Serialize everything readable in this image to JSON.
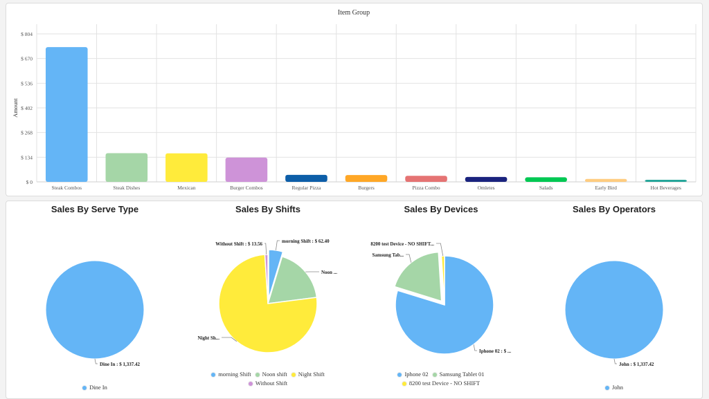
{
  "chart_data": [
    {
      "type": "bar",
      "title": "Item Group",
      "xlabel": "",
      "ylabel": "Amount",
      "ylim": [
        0,
        804
      ],
      "yticks": [
        "$ 0",
        "$ 134",
        "$ 268",
        "$ 402",
        "$ 536",
        "$ 670",
        "$ 804"
      ],
      "grid": true,
      "categories": [
        "Steak Combos",
        "Steak Dishes",
        "Mexican",
        "Burger Combos",
        "Regular Pizza",
        "Burgers",
        "Pizza Combo",
        "Omletes",
        "Salads",
        "Early Bird",
        "Hot Beverages"
      ],
      "values": [
        732,
        156,
        155,
        132,
        38,
        37,
        33,
        27,
        25,
        16,
        9
      ],
      "colors": [
        "#64b5f6",
        "#a5d6a7",
        "#ffeb3b",
        "#ce93d8",
        "#0d5ea8",
        "#ffa726",
        "#e57373",
        "#1a237e",
        "#00c853",
        "#ffcc80",
        "#26a69a"
      ]
    },
    {
      "type": "pie",
      "title": "Sales By Serve Type",
      "labels": [
        "Dine In"
      ],
      "values": [
        1337.42
      ],
      "colors": [
        "#64b5f6"
      ],
      "data_labels": [
        "Dine In : $ 1,337.42"
      ]
    },
    {
      "type": "pie",
      "title": "Sales By Shifts",
      "labels": [
        "morning Shift",
        "Noon shift",
        "Night Shift",
        "Without Shift"
      ],
      "values": [
        62.4,
        245,
        1016.46,
        13.56
      ],
      "colors": [
        "#64b5f6",
        "#a5d6a7",
        "#ffeb3b",
        "#ce93d8"
      ],
      "data_labels": [
        "morning Shift : $ 62.40",
        "Noon ...",
        "Night Sh...",
        "Without Shift : $ 13.56"
      ]
    },
    {
      "type": "pie",
      "title": "Sales By Devices",
      "labels": [
        "Iphone 02",
        "Samsung Tablet 01",
        "8200 test Device - NO SHIFT"
      ],
      "values": [
        1067,
        257,
        13.42
      ],
      "colors": [
        "#64b5f6",
        "#a5d6a7",
        "#ffeb3b"
      ],
      "data_labels": [
        "Iphone 02 : $ ...",
        "Samsung Tab...",
        "8200 test Device - NO SHIFT..."
      ]
    },
    {
      "type": "pie",
      "title": "Sales By Operators",
      "labels": [
        "John"
      ],
      "values": [
        1337.42
      ],
      "colors": [
        "#64b5f6"
      ],
      "data_labels": [
        "John : $ 1,337.42"
      ]
    }
  ]
}
